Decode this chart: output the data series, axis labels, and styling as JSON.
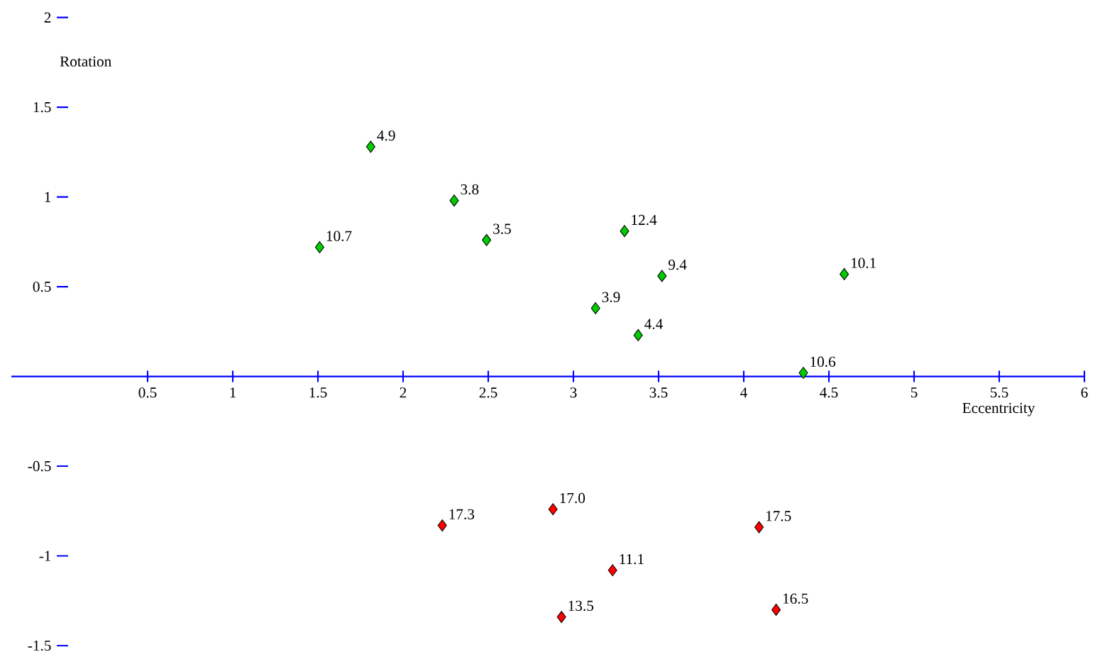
{
  "chart_data": {
    "type": "scatter",
    "xlabel": "Eccentricity",
    "ylabel": "Rotation",
    "series": [
      {
        "color": "#00cc00",
        "x": [
          1.81,
          2.3,
          2.49,
          1.51,
          3.3,
          3.52,
          4.59,
          3.13,
          3.38,
          4.35
        ],
        "values": [
          1.28,
          0.98,
          0.76,
          0.72,
          0.81,
          0.56,
          0.57,
          0.38,
          0.23,
          0.02
        ]
      },
      {
        "color": "#ff0000",
        "x": [
          2.88,
          2.23,
          4.09,
          3.23,
          2.93,
          4.19
        ],
        "values": [
          -0.74,
          -0.83,
          -0.84,
          -1.08,
          -1.34,
          -1.3
        ]
      }
    ],
    "annotations": [
      {
        "text": "4.9",
        "x": 1.81,
        "y": 1.28
      },
      {
        "text": "3.8",
        "x": 2.3,
        "y": 0.98
      },
      {
        "text": "3.5",
        "x": 2.49,
        "y": 0.76
      },
      {
        "text": "10.7",
        "x": 1.51,
        "y": 0.72
      },
      {
        "text": "12.4",
        "x": 3.3,
        "y": 0.81
      },
      {
        "text": "9.4",
        "x": 3.52,
        "y": 0.56
      },
      {
        "text": "10.1",
        "x": 4.59,
        "y": 0.57
      },
      {
        "text": "3.9",
        "x": 3.13,
        "y": 0.38
      },
      {
        "text": "4.4",
        "x": 3.38,
        "y": 0.23
      },
      {
        "text": "10.6",
        "x": 4.35,
        "y": 0.02
      },
      {
        "text": "17.0",
        "x": 2.88,
        "y": -0.74
      },
      {
        "text": "17.3",
        "x": 2.23,
        "y": -0.83
      },
      {
        "text": "17.5",
        "x": 4.09,
        "y": -0.84
      },
      {
        "text": "11.1",
        "x": 3.23,
        "y": -1.08
      },
      {
        "text": "13.5",
        "x": 2.93,
        "y": -1.34
      },
      {
        "text": "16.5",
        "x": 4.19,
        "y": -1.3
      }
    ],
    "xlim": [
      -0.3,
      6
    ],
    "ylim": [
      -1.5,
      2
    ],
    "xticks": [
      0.5,
      1,
      1.5,
      2,
      2.5,
      3,
      3.5,
      4,
      4.5,
      5,
      5.5,
      6
    ],
    "yticks": [
      -1.5,
      -1,
      -0.5,
      0.5,
      1,
      1.5,
      2
    ],
    "marker": "diamond",
    "grid": false
  }
}
